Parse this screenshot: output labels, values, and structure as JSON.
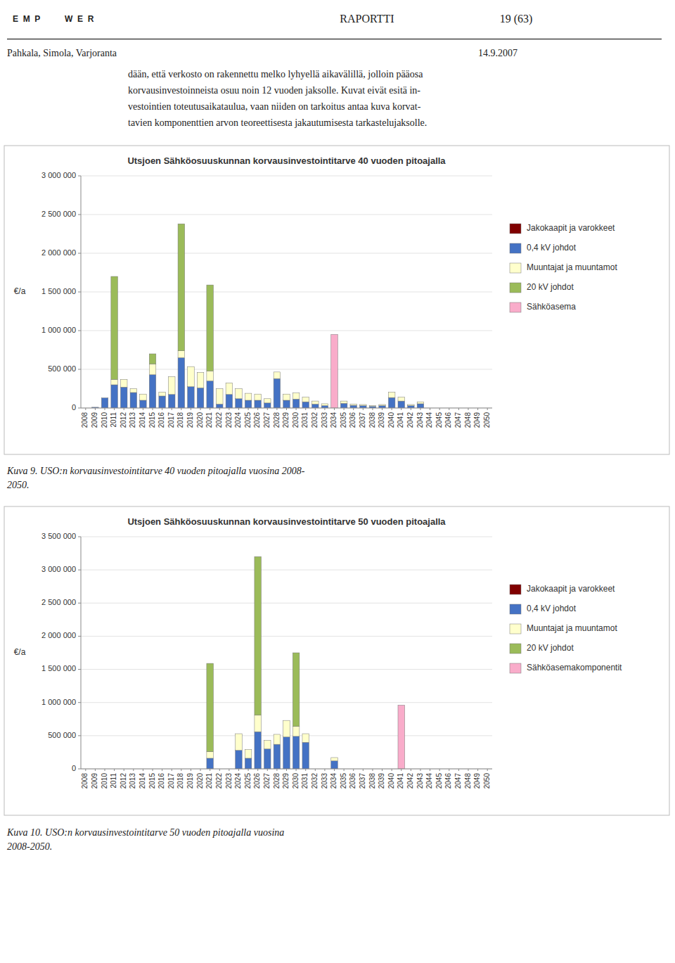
{
  "page": {
    "logo": [
      "E  M  P",
      "W  E  R"
    ],
    "header": [
      "RAPORTTI",
      "19 (63)"
    ],
    "authors": "Pahkala, Simola, Varjoranta",
    "date": "14.9.2007",
    "body": [
      "dään, että verkosto on rakennettu melko lyhyellä aikavälillä, jolloin pääosa",
      "korvausinvestoinneista osuu noin 12 vuoden jaksolle. Kuvat eivät esitä in-",
      "vestointien toteutusaikataulua, vaan niiden on tarkoitus antaa kuva korvat-",
      "tavien komponenttien arvon teoreettisesta jakautumisesta tarkastelujaksolle."
    ],
    "captions": [
      "Kuva 9. USO:n korvausinvestointitarve 40 vuoden pitoajalla vuosina 2008-\n2050.",
      "Kuva 10. USO:n korvausinvestointitarve 50 vuoden pitoajalla vuosina\n2008-2050."
    ]
  },
  "chart_data": [
    {
      "type": "bar",
      "stacked": true,
      "title": "Utsjoen Sähköosuuskunnan korvausinvestointitarve 40 vuoden pitoajalla",
      "ylabel": "€/a",
      "categories": [
        2008,
        2009,
        2010,
        2011,
        2012,
        2013,
        2014,
        2015,
        2016,
        2017,
        2018,
        2019,
        2020,
        2021,
        2022,
        2023,
        2024,
        2025,
        2026,
        2027,
        2028,
        2029,
        2030,
        2031,
        2032,
        2033,
        2034,
        2035,
        2036,
        2037,
        2038,
        2039,
        2040,
        2041,
        2042,
        2043,
        2044,
        2045,
        2046,
        2047,
        2048,
        2049,
        2050
      ],
      "series": [
        {
          "name": "Jakokaapit ja varokkeet",
          "color": "#800000",
          "values": [
            0,
            0,
            0,
            0,
            0,
            0,
            0,
            0,
            0,
            0,
            0,
            0,
            0,
            0,
            0,
            0,
            0,
            0,
            0,
            0,
            0,
            0,
            0,
            0,
            0,
            0,
            0,
            0,
            0,
            0,
            0,
            0,
            0,
            0,
            0,
            0,
            0,
            0,
            0,
            0,
            0,
            0,
            0
          ]
        },
        {
          "name": "0,4 kV johdot",
          "color": "#4472C4",
          "values": [
            0,
            10000,
            130000,
            300000,
            270000,
            200000,
            100000,
            430000,
            155000,
            175000,
            650000,
            275000,
            260000,
            350000,
            50000,
            175000,
            120000,
            100000,
            100000,
            65000,
            380000,
            100000,
            115000,
            80000,
            50000,
            30000,
            0,
            60000,
            35000,
            30000,
            20000,
            30000,
            135000,
            90000,
            30000,
            55000,
            0,
            0,
            0,
            0,
            0,
            0,
            0
          ]
        },
        {
          "name": "Muuntajat ja muuntamot",
          "color": "#FFFFCC",
          "values": [
            0,
            0,
            0,
            70000,
            100000,
            50000,
            80000,
            140000,
            50000,
            230000,
            90000,
            260000,
            200000,
            130000,
            200000,
            150000,
            130000,
            90000,
            80000,
            55000,
            85000,
            80000,
            80000,
            60000,
            40000,
            25000,
            0,
            30000,
            15000,
            15000,
            10000,
            15000,
            70000,
            50000,
            15000,
            25000,
            0,
            0,
            0,
            0,
            0,
            0,
            0
          ]
        },
        {
          "name": "20 kV johdot",
          "color": "#9BBB59",
          "values": [
            0,
            0,
            0,
            1330000,
            0,
            0,
            0,
            130000,
            0,
            0,
            1640000,
            0,
            0,
            1110000,
            0,
            0,
            0,
            0,
            0,
            0,
            0,
            0,
            0,
            0,
            0,
            0,
            0,
            0,
            0,
            0,
            0,
            0,
            0,
            0,
            0,
            0,
            0,
            0,
            0,
            0,
            0,
            0,
            0
          ]
        },
        {
          "name": "Sähköasema",
          "color": "#F9ACCA",
          "values": [
            0,
            0,
            0,
            0,
            0,
            0,
            0,
            0,
            0,
            0,
            0,
            0,
            0,
            0,
            0,
            0,
            0,
            0,
            0,
            0,
            0,
            0,
            0,
            0,
            0,
            0,
            950000,
            0,
            0,
            0,
            0,
            0,
            0,
            0,
            0,
            0,
            0,
            0,
            0,
            0,
            0,
            0,
            0
          ]
        }
      ],
      "ylim": [
        0,
        3000000
      ],
      "yticks": [
        0,
        {
          "value": 500000,
          "label": "500 000"
        },
        {
          "value": 1000000,
          "label": "1 000 000"
        },
        {
          "value": 1500000,
          "label": "1 500 000"
        },
        {
          "value": 2000000,
          "label": "2 000 000"
        },
        {
          "value": 2500000,
          "label": "2 500 000"
        },
        {
          "value": 3000000,
          "label": "3 000 000"
        }
      ],
      "grid": true,
      "legend": "right"
    },
    {
      "type": "bar",
      "stacked": true,
      "title": "Utsjoen Sähköosuuskunnan korvausinvestointitarve 50 vuoden pitoajalla",
      "ylabel": "€/a",
      "categories": [
        2008,
        2009,
        2010,
        2011,
        2012,
        2013,
        2014,
        2015,
        2016,
        2017,
        2018,
        2019,
        2020,
        2021,
        2022,
        2023,
        2024,
        2025,
        2026,
        2027,
        2028,
        2029,
        2030,
        2031,
        2032,
        2033,
        2034,
        2035,
        2036,
        2037,
        2038,
        2039,
        2040,
        2041,
        2042,
        2043,
        2044,
        2045,
        2046,
        2047,
        2048,
        2049,
        2050
      ],
      "series": [
        {
          "name": "Jakokaapit ja varokkeet",
          "color": "#800000",
          "values": [
            0,
            0,
            0,
            0,
            0,
            0,
            0,
            0,
            0,
            0,
            0,
            0,
            0,
            0,
            0,
            0,
            0,
            0,
            0,
            0,
            0,
            0,
            0,
            0,
            0,
            0,
            0,
            0,
            0,
            0,
            0,
            0,
            0,
            0,
            0,
            0,
            0,
            0,
            0,
            0,
            0,
            0,
            0
          ]
        },
        {
          "name": "0,4 kV johdot",
          "color": "#4472C4",
          "values": [
            0,
            0,
            0,
            0,
            0,
            0,
            0,
            0,
            0,
            0,
            0,
            0,
            0,
            160000,
            0,
            0,
            280000,
            160000,
            560000,
            300000,
            370000,
            480000,
            490000,
            400000,
            0,
            0,
            120000,
            0,
            0,
            0,
            0,
            0,
            0,
            0,
            0,
            0,
            0,
            0,
            0,
            0,
            0,
            0,
            0
          ]
        },
        {
          "name": "Muuntajat ja muuntamot",
          "color": "#FFFFCC",
          "values": [
            0,
            0,
            0,
            0,
            0,
            0,
            0,
            0,
            0,
            0,
            0,
            0,
            0,
            100000,
            0,
            0,
            250000,
            130000,
            250000,
            130000,
            150000,
            250000,
            150000,
            130000,
            0,
            0,
            50000,
            0,
            0,
            0,
            0,
            0,
            0,
            0,
            0,
            0,
            0,
            0,
            0,
            0,
            0,
            0,
            0
          ]
        },
        {
          "name": "20 kV johdot",
          "color": "#9BBB59",
          "values": [
            0,
            0,
            0,
            0,
            0,
            0,
            0,
            0,
            0,
            0,
            0,
            0,
            0,
            1330000,
            0,
            0,
            0,
            0,
            2390000,
            0,
            0,
            0,
            1110000,
            0,
            0,
            0,
            0,
            0,
            0,
            0,
            0,
            0,
            0,
            0,
            0,
            0,
            0,
            0,
            0,
            0,
            0,
            0,
            0
          ]
        },
        {
          "name": "Sähköasemakomponentit",
          "color": "#F9ACCA",
          "values": [
            0,
            0,
            0,
            0,
            0,
            0,
            0,
            0,
            0,
            0,
            0,
            0,
            0,
            0,
            0,
            0,
            0,
            0,
            0,
            0,
            0,
            0,
            0,
            0,
            0,
            0,
            0,
            0,
            0,
            0,
            0,
            0,
            0,
            960000,
            0,
            0,
            0,
            0,
            0,
            0,
            0,
            0,
            0
          ]
        }
      ],
      "ylim": [
        0,
        3500000
      ],
      "yticks": [
        0,
        {
          "value": 500000,
          "label": "500 000"
        },
        {
          "value": 1000000,
          "label": "1 000 000"
        },
        {
          "value": 1500000,
          "label": "1 500 000"
        },
        {
          "value": 2000000,
          "label": "2 000 000"
        },
        {
          "value": 2500000,
          "label": "2 500 000"
        },
        {
          "value": 3000000,
          "label": "3 000 000"
        },
        {
          "value": 3500000,
          "label": "3 500 000"
        }
      ],
      "grid": true,
      "legend": "right"
    }
  ]
}
